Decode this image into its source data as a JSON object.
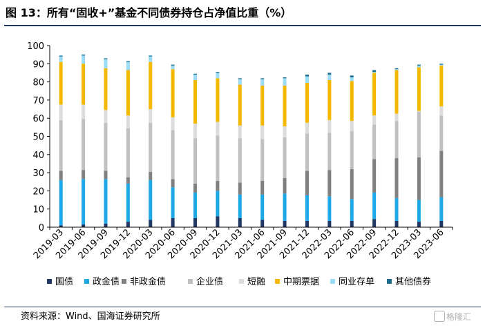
{
  "header": {
    "title": "图 13：所有“固收+”基金不同债券持仓占净值比重（%）"
  },
  "footer": {
    "source": "资料来源：Wind、国海证券研究所",
    "watermark": "格隆汇"
  },
  "chart_data": {
    "type": "bar",
    "stacked": true,
    "title": "",
    "xlabel": "",
    "ylabel": "",
    "ylim": [
      0,
      100
    ],
    "yticks": [
      0,
      10,
      20,
      30,
      40,
      50,
      60,
      70,
      80,
      90,
      100
    ],
    "grid": false,
    "legend_position": "bottom",
    "categories": [
      "2019-03",
      "2019-06",
      "2019-09",
      "2019-12",
      "2020-03",
      "2020-06",
      "2020-09",
      "2020-12",
      "2021-03",
      "2021-06",
      "2021-09",
      "2021-12",
      "2022-03",
      "2022-06",
      "2022-09",
      "2022-12",
      "2023-03",
      "2023-06"
    ],
    "series": [
      {
        "name": "国债",
        "color": "#1f3864",
        "values": [
          1.0,
          1.5,
          2.0,
          3.0,
          4.0,
          5.0,
          5.0,
          6.0,
          5.0,
          4.0,
          3.5,
          3.5,
          3.5,
          3.5,
          4.5,
          3.5,
          3.0,
          3.5
        ]
      },
      {
        "name": "政金债",
        "color": "#1fa8e8",
        "values": [
          25.0,
          25.0,
          24.5,
          21.0,
          22.0,
          17.0,
          14.0,
          14.0,
          13.0,
          14.0,
          15.0,
          14.0,
          13.5,
          12.0,
          14.5,
          12.5,
          12.0,
          13.0
        ]
      },
      {
        "name": "非政金债",
        "color": "#808080",
        "values": [
          5.0,
          5.0,
          4.5,
          3.5,
          4.5,
          4.5,
          5.0,
          5.5,
          6.5,
          7.5,
          8.5,
          13.5,
          14.5,
          16.5,
          18.5,
          22.0,
          23.5,
          25.5
        ]
      },
      {
        "name": "企业债",
        "color": "#c0c0c0",
        "values": [
          28.0,
          28.0,
          26.5,
          27.0,
          27.0,
          27.0,
          25.0,
          25.0,
          24.5,
          23.0,
          22.5,
          20.5,
          20.5,
          21.0,
          19.0,
          20.5,
          25.0,
          19.5
        ]
      },
      {
        "name": "短融",
        "color": "#dcdcdc",
        "values": [
          8.5,
          8.0,
          7.0,
          7.0,
          7.5,
          7.0,
          8.0,
          7.5,
          7.0,
          7.5,
          6.0,
          6.0,
          7.0,
          5.5,
          5.0,
          4.0,
          0.5,
          5.0
        ]
      },
      {
        "name": "中期票据",
        "color": "#f5b800",
        "values": [
          23.5,
          22.5,
          23.0,
          25.0,
          26.0,
          26.5,
          24.0,
          24.0,
          22.5,
          22.0,
          22.5,
          22.0,
          22.0,
          22.0,
          23.5,
          24.0,
          24.0,
          22.5
        ]
      },
      {
        "name": "同业存单",
        "color": "#9adcf5",
        "values": [
          3.0,
          4.5,
          5.0,
          4.5,
          3.0,
          2.0,
          3.0,
          3.0,
          3.0,
          3.5,
          4.0,
          3.5,
          3.0,
          2.0,
          0.5,
          0.5,
          1.0,
          0.5
        ]
      },
      {
        "name": "其他债券",
        "color": "#1a6e8c",
        "values": [
          0.5,
          0.5,
          0.5,
          0.5,
          0.5,
          0.5,
          0.5,
          0.5,
          0.5,
          0.5,
          0.5,
          1.0,
          1.0,
          1.0,
          1.0,
          0.5,
          0.5,
          0.5
        ]
      }
    ]
  }
}
